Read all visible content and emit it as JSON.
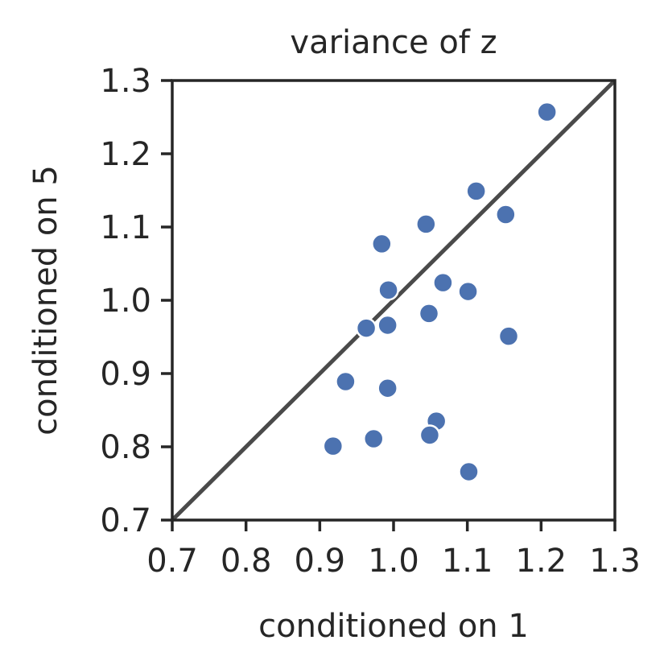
{
  "chart_data": {
    "type": "scatter",
    "title": "variance of z",
    "xlabel": "conditioned on 1",
    "ylabel": "conditioned on 5",
    "xlim": [
      0.7,
      1.3
    ],
    "ylim": [
      0.7,
      1.3
    ],
    "xticks": [
      "0.7",
      "0.8",
      "0.9",
      "1.0",
      "1.1",
      "1.2",
      "1.3"
    ],
    "yticks": [
      "0.7",
      "0.8",
      "0.9",
      "1.0",
      "1.1",
      "1.2",
      "1.3"
    ],
    "grid": false,
    "reference_line": {
      "from": [
        0.7,
        0.7
      ],
      "to": [
        1.3,
        1.3
      ],
      "color": "#4a4a4a"
    },
    "point_color": "#4c72b0",
    "points": [
      {
        "x": 1.208,
        "y": 1.257
      },
      {
        "x": 1.112,
        "y": 1.149
      },
      {
        "x": 1.152,
        "y": 1.117
      },
      {
        "x": 1.044,
        "y": 1.104
      },
      {
        "x": 0.984,
        "y": 1.077
      },
      {
        "x": 1.067,
        "y": 1.024
      },
      {
        "x": 0.993,
        "y": 1.014
      },
      {
        "x": 1.101,
        "y": 1.012
      },
      {
        "x": 1.048,
        "y": 0.982
      },
      {
        "x": 0.963,
        "y": 0.962
      },
      {
        "x": 0.992,
        "y": 0.966
      },
      {
        "x": 1.156,
        "y": 0.951
      },
      {
        "x": 0.935,
        "y": 0.889
      },
      {
        "x": 0.992,
        "y": 0.88
      },
      {
        "x": 1.058,
        "y": 0.835
      },
      {
        "x": 1.049,
        "y": 0.816
      },
      {
        "x": 0.973,
        "y": 0.811
      },
      {
        "x": 0.918,
        "y": 0.801
      },
      {
        "x": 1.102,
        "y": 0.766
      }
    ]
  }
}
